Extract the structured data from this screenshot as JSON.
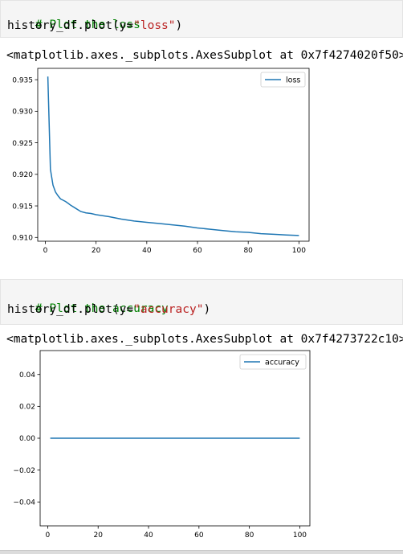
{
  "cells": [
    {
      "comment": "# Plot the loss",
      "code_prefix": "history_df.plot(y=",
      "code_arg": "\"loss\"",
      "code_suffix": ")",
      "output_text": "<matplotlib.axes._subplots.AxesSubplot at 0x7f4274020f50>"
    },
    {
      "comment": "# Plot the accuracy",
      "code_prefix": "history_df.plot(y=",
      "code_arg": "\"accuracy\"",
      "code_suffix": ")",
      "output_text": "<matplotlib.axes._subplots.AxesSubplot at 0x7f4273722c10>"
    }
  ],
  "chart_data": [
    {
      "type": "line",
      "series": [
        {
          "name": "loss",
          "color": "#1f77b4",
          "x": [
            1,
            2,
            3,
            4,
            5,
            6,
            7,
            8,
            9,
            10,
            12,
            14,
            16,
            18,
            20,
            25,
            30,
            35,
            40,
            45,
            50,
            55,
            60,
            65,
            70,
            75,
            80,
            85,
            90,
            95,
            100
          ],
          "values": [
            0.9355,
            0.9208,
            0.9183,
            0.9172,
            0.9166,
            0.9161,
            0.9159,
            0.9157,
            0.9154,
            0.9151,
            0.9146,
            0.9141,
            0.9139,
            0.9138,
            0.9136,
            0.9133,
            0.9129,
            0.9126,
            0.9124,
            0.9122,
            0.912,
            0.9118,
            0.9115,
            0.9113,
            0.9111,
            0.9109,
            0.9108,
            0.9106,
            0.9105,
            0.9104,
            0.9103
          ]
        }
      ],
      "xlim": [
        -3,
        104
      ],
      "ylim": [
        0.9094,
        0.9368
      ],
      "xticks": [
        "0",
        "20",
        "40",
        "60",
        "80",
        "100"
      ],
      "xtick_values": [
        0,
        20,
        40,
        60,
        80,
        100
      ],
      "yticks": [
        "0.935",
        "0.930",
        "0.925",
        "0.920",
        "0.915",
        "0.910"
      ],
      "ytick_values": [
        0.935,
        0.93,
        0.925,
        0.92,
        0.915,
        0.91
      ],
      "grid": false,
      "legend": "upper right"
    },
    {
      "type": "line",
      "series": [
        {
          "name": "accuracy",
          "color": "#1f77b4",
          "x": [
            1,
            100
          ],
          "values": [
            0,
            0
          ]
        }
      ],
      "xlim": [
        -3,
        104
      ],
      "ylim": [
        -0.055,
        0.055
      ],
      "xticks": [
        "0",
        "20",
        "40",
        "60",
        "80",
        "100"
      ],
      "xtick_values": [
        0,
        20,
        40,
        60,
        80,
        100
      ],
      "yticks": [
        "0.04",
        "0.02",
        "0.00",
        "−0.02",
        "−0.04"
      ],
      "ytick_values": [
        0.04,
        0.02,
        0.0,
        -0.02,
        -0.04
      ],
      "grid": false,
      "legend": "upper right"
    }
  ]
}
